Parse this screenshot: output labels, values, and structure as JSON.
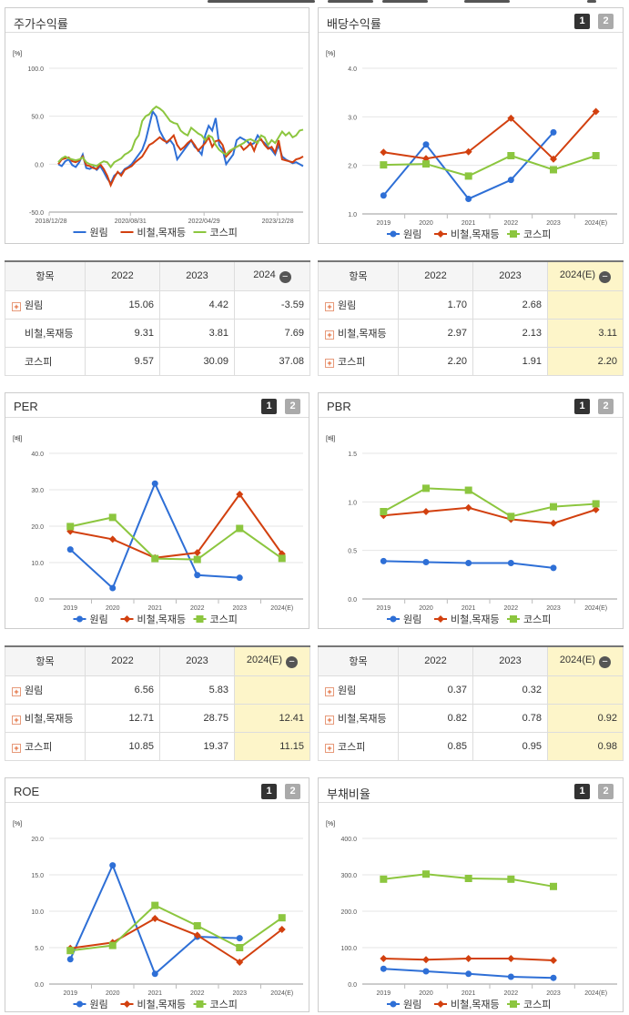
{
  "colors": {
    "wonrim": "#2e6fd6",
    "steel": "#d2400f",
    "kospi": "#8cc63f",
    "highlight": "#fdf5c9"
  },
  "legend": [
    "원림",
    "비철,목재등",
    "코스피"
  ],
  "panels": {
    "stock": {
      "title": "주가수익률",
      "unit": "[%]"
    },
    "dividend": {
      "title": "배당수익률",
      "unit": "[%]",
      "btn1": "1",
      "btn2": "2"
    },
    "per": {
      "title": "PER",
      "unit": "[배]",
      "btn1": "1",
      "btn2": "2"
    },
    "pbr": {
      "title": "PBR",
      "unit": "[배]",
      "btn1": "1",
      "btn2": "2"
    },
    "roe": {
      "title": "ROE",
      "unit": "[%]",
      "btn1": "1",
      "btn2": "2"
    },
    "debt": {
      "title": "부채비율",
      "unit": "[%]",
      "btn1": "1",
      "btn2": "2"
    }
  },
  "tables": {
    "stock": {
      "header": [
        "항목",
        "2022",
        "2023",
        "2024"
      ],
      "rows": [
        {
          "name": "원림",
          "plus": true,
          "vals": [
            "15.06",
            "4.42",
            "-3.59"
          ]
        },
        {
          "name": "비철,목재등",
          "plus": false,
          "vals": [
            "9.31",
            "3.81",
            "7.69"
          ]
        },
        {
          "name": "코스피",
          "plus": false,
          "vals": [
            "9.57",
            "30.09",
            "37.08"
          ]
        }
      ]
    },
    "dividend": {
      "header": [
        "항목",
        "2022",
        "2023",
        "2024(E)"
      ],
      "rows": [
        {
          "name": "원림",
          "plus": true,
          "vals": [
            "1.70",
            "2.68",
            ""
          ]
        },
        {
          "name": "비철,목재등",
          "plus": true,
          "vals": [
            "2.97",
            "2.13",
            "3.11"
          ]
        },
        {
          "name": "코스피",
          "plus": true,
          "vals": [
            "2.20",
            "1.91",
            "2.20"
          ]
        }
      ]
    },
    "per": {
      "header": [
        "항목",
        "2022",
        "2023",
        "2024(E)"
      ],
      "rows": [
        {
          "name": "원림",
          "plus": true,
          "vals": [
            "6.56",
            "5.83",
            ""
          ]
        },
        {
          "name": "비철,목재등",
          "plus": true,
          "vals": [
            "12.71",
            "28.75",
            "12.41"
          ]
        },
        {
          "name": "코스피",
          "plus": true,
          "vals": [
            "10.85",
            "19.37",
            "11.15"
          ]
        }
      ]
    },
    "pbr": {
      "header": [
        "항목",
        "2022",
        "2023",
        "2024(E)"
      ],
      "rows": [
        {
          "name": "원림",
          "plus": true,
          "vals": [
            "0.37",
            "0.32",
            ""
          ]
        },
        {
          "name": "비철,목재등",
          "plus": true,
          "vals": [
            "0.82",
            "0.78",
            "0.92"
          ]
        },
        {
          "name": "코스피",
          "plus": true,
          "vals": [
            "0.85",
            "0.95",
            "0.98"
          ]
        }
      ]
    }
  },
  "chart_data": [
    {
      "id": "stock",
      "type": "line",
      "title": "주가수익률",
      "ylabel": "[%]",
      "ylim": [
        -50,
        100
      ],
      "yticks": [
        "100.0",
        "50.0",
        "0.0",
        "-50.0"
      ],
      "xticks": [
        "2018/12/28",
        "2020/08/31",
        "2022/04/29",
        "2023/12/28"
      ],
      "series": [
        {
          "name": "원림",
          "values": [
            0,
            -2,
            3,
            5,
            -1,
            -3,
            2,
            10,
            -4,
            -5,
            -3,
            -6,
            -2,
            -8,
            -15,
            -20,
            -12,
            -9,
            -10,
            -5,
            -3,
            0,
            5,
            10,
            15,
            25,
            40,
            55,
            50,
            35,
            28,
            22,
            25,
            20,
            5,
            10,
            15,
            20,
            25,
            18,
            15,
            10,
            30,
            40,
            35,
            48,
            20,
            15,
            0,
            5,
            10,
            25,
            28,
            26,
            24,
            20,
            22,
            30,
            25,
            22,
            18,
            15,
            10,
            20,
            8,
            5,
            3,
            1,
            2,
            0,
            -2
          ]
        },
        {
          "name": "비철,목재등",
          "values": [
            0,
            5,
            6,
            7,
            3,
            2,
            4,
            8,
            -1,
            -2,
            -4,
            -5,
            0,
            -5,
            -12,
            -22,
            -14,
            -8,
            -12,
            -6,
            -4,
            -2,
            2,
            5,
            8,
            14,
            20,
            22,
            25,
            28,
            25,
            23,
            26,
            30,
            20,
            15,
            18,
            22,
            25,
            20,
            14,
            18,
            22,
            28,
            18,
            24,
            25,
            20,
            8,
            12,
            16,
            18,
            20,
            15,
            18,
            22,
            14,
            24,
            26,
            20,
            16,
            18,
            12,
            25,
            5,
            4,
            3,
            2,
            5,
            6,
            8
          ]
        },
        {
          "name": "코스피",
          "values": [
            2,
            6,
            8,
            6,
            5,
            4,
            5,
            7,
            2,
            0,
            -1,
            -2,
            1,
            3,
            2,
            -3,
            2,
            4,
            6,
            10,
            12,
            15,
            25,
            30,
            45,
            50,
            52,
            57,
            60,
            58,
            55,
            50,
            45,
            43,
            42,
            35,
            32,
            30,
            38,
            35,
            32,
            30,
            25,
            30,
            28,
            20,
            15,
            12,
            10,
            14,
            16,
            18,
            20,
            22,
            25,
            26,
            24,
            22,
            30,
            28,
            20,
            25,
            22,
            28,
            34,
            30,
            33,
            28,
            30,
            35,
            36
          ]
        }
      ]
    },
    {
      "id": "dividend",
      "type": "line",
      "ylabel": "[%]",
      "ylim": [
        1.0,
        4.0
      ],
      "yticks": [
        "4.0",
        "3.0",
        "2.0",
        "1.0"
      ],
      "categories": [
        "2019",
        "2020",
        "2021",
        "2022",
        "2023",
        "2024(E)"
      ],
      "series": [
        {
          "name": "원림",
          "values": [
            1.38,
            2.43,
            1.31,
            1.7,
            2.68,
            null
          ]
        },
        {
          "name": "비철,목재등",
          "values": [
            2.27,
            2.14,
            2.28,
            2.97,
            2.13,
            3.11
          ]
        },
        {
          "name": "코스피",
          "values": [
            2.01,
            2.03,
            1.78,
            2.2,
            1.91,
            2.2
          ]
        }
      ]
    },
    {
      "id": "per",
      "type": "line",
      "ylabel": "[배]",
      "ylim": [
        0,
        40
      ],
      "yticks": [
        "40.0",
        "30.0",
        "20.0",
        "10.0",
        "0.0"
      ],
      "categories": [
        "2019",
        "2020",
        "2021",
        "2022",
        "2023",
        "2024(E)"
      ],
      "series": [
        {
          "name": "원림",
          "values": [
            13.6,
            3.0,
            31.7,
            6.56,
            5.83,
            null
          ]
        },
        {
          "name": "비철,목재등",
          "values": [
            18.6,
            16.4,
            11.3,
            12.71,
            28.75,
            12.41
          ]
        },
        {
          "name": "코스피",
          "values": [
            19.9,
            22.4,
            11.1,
            10.85,
            19.37,
            11.15
          ]
        }
      ]
    },
    {
      "id": "pbr",
      "type": "line",
      "ylabel": "[배]",
      "ylim": [
        0,
        1.5
      ],
      "yticks": [
        "1.5",
        "1.0",
        "0.5",
        "0.0"
      ],
      "categories": [
        "2019",
        "2020",
        "2021",
        "2022",
        "2023",
        "2024(E)"
      ],
      "series": [
        {
          "name": "원림",
          "values": [
            0.39,
            0.38,
            0.37,
            0.37,
            0.32,
            null
          ]
        },
        {
          "name": "비철,목재등",
          "values": [
            0.86,
            0.9,
            0.94,
            0.82,
            0.78,
            0.92
          ]
        },
        {
          "name": "코스피",
          "values": [
            0.9,
            1.14,
            1.12,
            0.85,
            0.95,
            0.98
          ]
        }
      ]
    },
    {
      "id": "roe",
      "type": "line",
      "ylabel": "[%]",
      "ylim": [
        0,
        20
      ],
      "yticks": [
        "20.0",
        "15.0",
        "10.0",
        "5.0",
        "0.0"
      ],
      "categories": [
        "2019",
        "2020",
        "2021",
        "2022",
        "2023",
        "2024(E)"
      ],
      "series": [
        {
          "name": "원림",
          "values": [
            3.4,
            16.3,
            1.4,
            6.5,
            6.3,
            null
          ]
        },
        {
          "name": "비철,목재등",
          "values": [
            4.9,
            5.7,
            9.0,
            6.7,
            3.0,
            7.5
          ]
        },
        {
          "name": "코스피",
          "values": [
            4.6,
            5.3,
            10.8,
            8.0,
            5.0,
            9.1
          ]
        }
      ]
    },
    {
      "id": "debt",
      "type": "line",
      "ylabel": "[%]",
      "ylim": [
        0,
        400
      ],
      "yticks": [
        "400.0",
        "300.0",
        "200.0",
        "100.0",
        "0.0"
      ],
      "categories": [
        "2019",
        "2020",
        "2021",
        "2022",
        "2023",
        "2024(E)"
      ],
      "series": [
        {
          "name": "원림",
          "values": [
            42,
            35,
            28,
            20,
            17,
            null
          ]
        },
        {
          "name": "비철,목재등",
          "values": [
            70,
            67,
            70,
            70,
            65,
            null
          ]
        },
        {
          "name": "코스피",
          "values": [
            288,
            302,
            290,
            288,
            268,
            null
          ]
        }
      ]
    }
  ]
}
